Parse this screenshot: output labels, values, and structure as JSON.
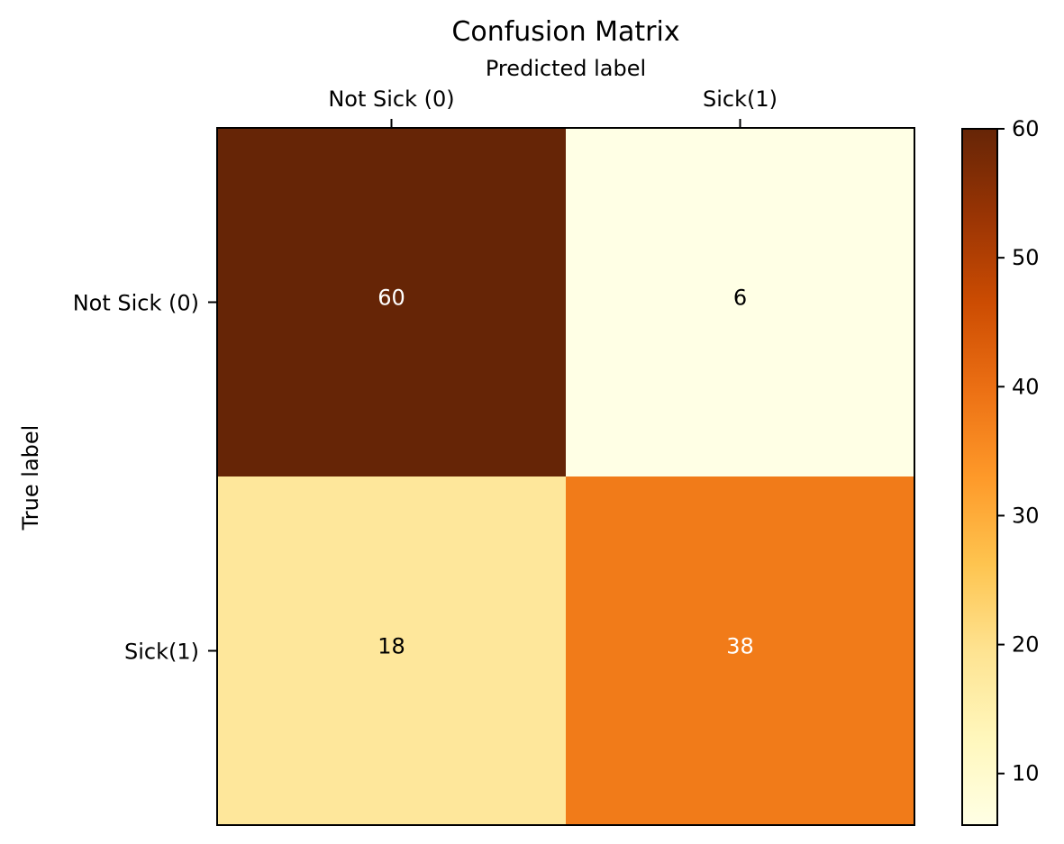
{
  "chart_data": {
    "type": "heatmap",
    "title": "Confusion Matrix",
    "xlabel": "Predicted label",
    "ylabel": "True label",
    "x_categories": [
      "Not Sick (0)",
      "Sick(1)"
    ],
    "y_categories": [
      "Not Sick (0)",
      "Sick(1)"
    ],
    "values": [
      [
        60,
        6
      ],
      [
        18,
        38
      ]
    ],
    "colorbar": {
      "range": [
        6,
        60
      ],
      "ticks": [
        10,
        20,
        30,
        40,
        50,
        60
      ],
      "colormap": "YlOrBr",
      "stops": [
        "#ffffe5",
        "#fff7bc",
        "#fee391",
        "#fec44f",
        "#fe9929",
        "#ec7014",
        "#cc4c02",
        "#993404",
        "#662506"
      ]
    },
    "label_colors": {
      "dark_cell": "#ffffff",
      "light_cell": "#000000"
    }
  }
}
